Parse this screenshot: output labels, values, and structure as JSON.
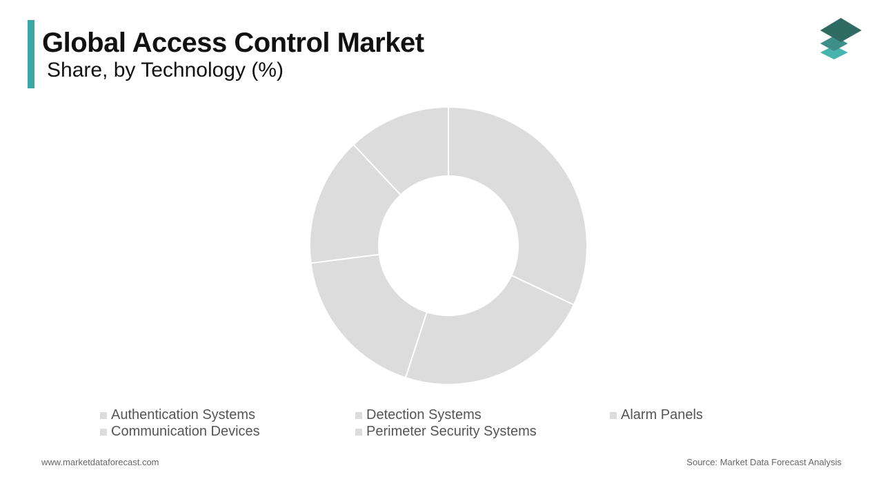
{
  "header": {
    "title": "Global Access Control Market",
    "subtitle": "Share, by Technology (%)"
  },
  "colors": {
    "accent": "#3aa9a5",
    "slice_fill": "#dcdcdc",
    "legend_swatch": "#dcdcdc",
    "logo_dark": "#2f6b63",
    "logo_mid": "#3e8f87",
    "logo_light": "#46b3ac"
  },
  "logo": {
    "icon": "stacked-layers-icon"
  },
  "chart_data": {
    "type": "pie",
    "donut": true,
    "categories": [
      "Authentication Systems",
      "Detection Systems",
      "Alarm Panels",
      "Communication Devices",
      "Perimeter Security Systems"
    ],
    "values": [
      32,
      23,
      18,
      15,
      12
    ],
    "start_angle_deg": 0,
    "legend_position": "bottom"
  },
  "footer": {
    "website": "www.marketdataforecast.com",
    "source": "Source: Market Data Forecast Analysis"
  }
}
